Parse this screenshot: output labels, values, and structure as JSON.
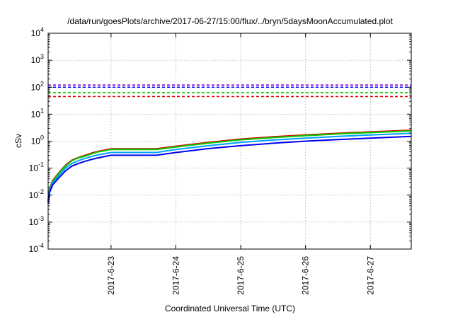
{
  "chart_data": {
    "type": "line",
    "title": "/data/run/goesPlots/archive/2017-06-27/15:00/flux/../bryn/5daysMoonAccumulated.plot",
    "xlabel": "Coordinated Universal Time (UTC)",
    "ylabel": "cSv",
    "yscale": "log",
    "ylim_exponents": [
      -4,
      4
    ],
    "y_ticks": [
      {
        "base": "10",
        "exp": "-4"
      },
      {
        "base": "10",
        "exp": "-3"
      },
      {
        "base": "10",
        "exp": "-2"
      },
      {
        "base": "10",
        "exp": "-1"
      },
      {
        "base": "10",
        "exp": "0"
      },
      {
        "base": "10",
        "exp": "1"
      },
      {
        "base": "10",
        "exp": "2"
      },
      {
        "base": "10",
        "exp": "3"
      },
      {
        "base": "10",
        "exp": "4"
      }
    ],
    "x_day_range": [
      22.03,
      27.63
    ],
    "x_ticks": [
      {
        "label": "2017-6-23",
        "day": 23
      },
      {
        "label": "2017-6-24",
        "day": 24
      },
      {
        "label": "2017-6-25",
        "day": 25
      },
      {
        "label": "2017-6-26",
        "day": 26
      },
      {
        "label": "2017-6-27",
        "day": 27
      }
    ],
    "grid": true,
    "thresholds": [
      {
        "color": "#7a00d6",
        "value": 120
      },
      {
        "color": "#0000ff",
        "value": 100
      },
      {
        "color": "#00cc00",
        "value": 63
      },
      {
        "color": "#e00000",
        "value": 45
      }
    ],
    "series": [
      {
        "color": "#e00000",
        "x": [
          22.03,
          22.05,
          22.1,
          22.2,
          22.3,
          22.4,
          22.5,
          22.6,
          22.7,
          22.8,
          23.0,
          23.7,
          24.0,
          24.5,
          25.0,
          25.5,
          26.0,
          26.5,
          27.0,
          27.63
        ],
        "y": [
          0.006,
          0.017,
          0.035,
          0.07,
          0.13,
          0.2,
          0.25,
          0.3,
          0.36,
          0.42,
          0.52,
          0.52,
          0.65,
          0.9,
          1.2,
          1.45,
          1.7,
          1.95,
          2.2,
          2.55
        ]
      },
      {
        "color": "#00cc00",
        "x": [
          22.03,
          22.05,
          22.1,
          22.2,
          22.3,
          22.4,
          22.5,
          22.6,
          22.7,
          22.8,
          23.0,
          23.7,
          24.0,
          24.5,
          25.0,
          25.5,
          26.0,
          26.5,
          27.0,
          27.63
        ],
        "y": [
          0.006,
          0.016,
          0.033,
          0.066,
          0.12,
          0.19,
          0.24,
          0.28,
          0.34,
          0.4,
          0.49,
          0.49,
          0.61,
          0.85,
          1.12,
          1.36,
          1.6,
          1.85,
          2.08,
          2.4
        ]
      },
      {
        "color": "#00a0ff",
        "x": [
          22.03,
          22.05,
          22.1,
          22.2,
          22.3,
          22.4,
          22.5,
          22.6,
          22.7,
          22.8,
          23.0,
          23.7,
          24.0,
          24.5,
          25.0,
          25.5,
          26.0,
          26.5,
          27.0,
          27.63
        ],
        "y": [
          0.0055,
          0.014,
          0.028,
          0.055,
          0.1,
          0.15,
          0.19,
          0.23,
          0.27,
          0.31,
          0.38,
          0.38,
          0.49,
          0.68,
          0.9,
          1.1,
          1.3,
          1.5,
          1.7,
          1.95
        ]
      },
      {
        "color": "#0000ee",
        "x": [
          22.03,
          22.05,
          22.1,
          22.2,
          22.3,
          22.4,
          22.5,
          22.6,
          22.7,
          22.8,
          23.0,
          23.7,
          24.0,
          24.5,
          25.0,
          25.5,
          26.0,
          26.5,
          27.0,
          27.63
        ],
        "y": [
          0.005,
          0.012,
          0.024,
          0.045,
          0.08,
          0.12,
          0.15,
          0.18,
          0.21,
          0.24,
          0.3,
          0.3,
          0.38,
          0.53,
          0.68,
          0.84,
          1.0,
          1.15,
          1.3,
          1.5
        ]
      }
    ]
  }
}
